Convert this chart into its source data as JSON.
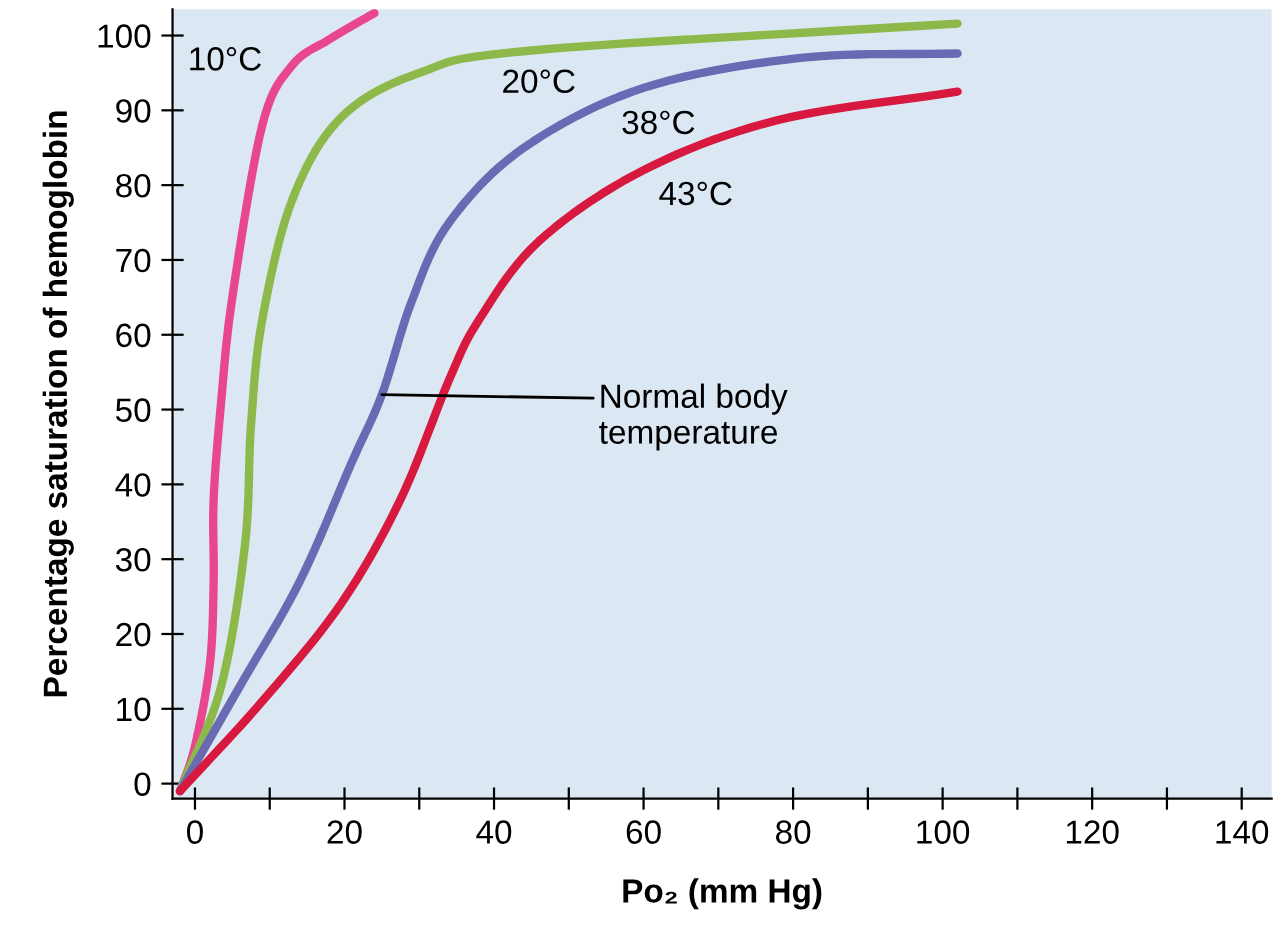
{
  "chart_data": {
    "type": "line",
    "xlabel": "Po₂ (mm Hg)",
    "ylabel": "Percentage saturation of hemoglobin",
    "xlim": [
      -3,
      144
    ],
    "ylim": [
      -2,
      103.5
    ],
    "xticks": [
      0,
      {
        "value": 10,
        "label": null
      },
      20,
      {
        "value": 30,
        "label": null
      },
      40,
      {
        "value": 50,
        "label": null
      },
      60,
      {
        "value": 70,
        "label": null
      },
      80,
      {
        "value": 90,
        "label": null
      },
      100,
      {
        "value": 110,
        "label": null
      },
      120,
      {
        "value": 130,
        "label": null
      },
      140
    ],
    "yticks": [
      0,
      10,
      20,
      30,
      40,
      50,
      60,
      70,
      80,
      90,
      100
    ],
    "grid": false,
    "marker": "none",
    "line_style": "solid",
    "series": [
      {
        "name": "10°C",
        "color": "#e8468f",
        "x": [
          -2,
          0,
          2,
          2.5,
          2.5,
          3.5,
          5,
          9,
          13,
          18,
          24
        ],
        "values": [
          -1,
          5,
          16,
          27,
          38,
          51,
          65,
          88,
          96,
          99.5,
          103
        ]
      },
      {
        "name": "20°C",
        "color": "#8db84a",
        "x": [
          -2,
          3.5,
          6.7,
          7.5,
          9,
          13,
          19.5,
          30,
          45,
          102
        ],
        "values": [
          -1,
          13,
          32,
          48,
          62,
          78,
          89,
          95,
          98,
          101.6
        ]
      },
      {
        "name": "38°C",
        "color": "#6a6ab4",
        "x": [
          -2,
          6,
          14,
          21,
          25,
          29,
          34,
          44,
          60,
          81,
          102
        ],
        "values": [
          -1,
          13,
          27,
          43,
          52,
          64.5,
          75,
          85,
          93,
          97,
          97.6
        ]
      },
      {
        "name": "43°C",
        "color": "#d7193f",
        "x": [
          -2,
          9,
          19.5,
          27.5,
          34,
          38,
          46,
          60,
          78,
          102
        ],
        "values": [
          -1,
          11,
          24,
          38,
          54,
          62,
          72.5,
          82,
          88.7,
          92.5
        ]
      }
    ],
    "annotations": [
      {
        "text": "Normal body\ntemperature",
        "x": 25,
        "y": 52
      }
    ]
  }
}
